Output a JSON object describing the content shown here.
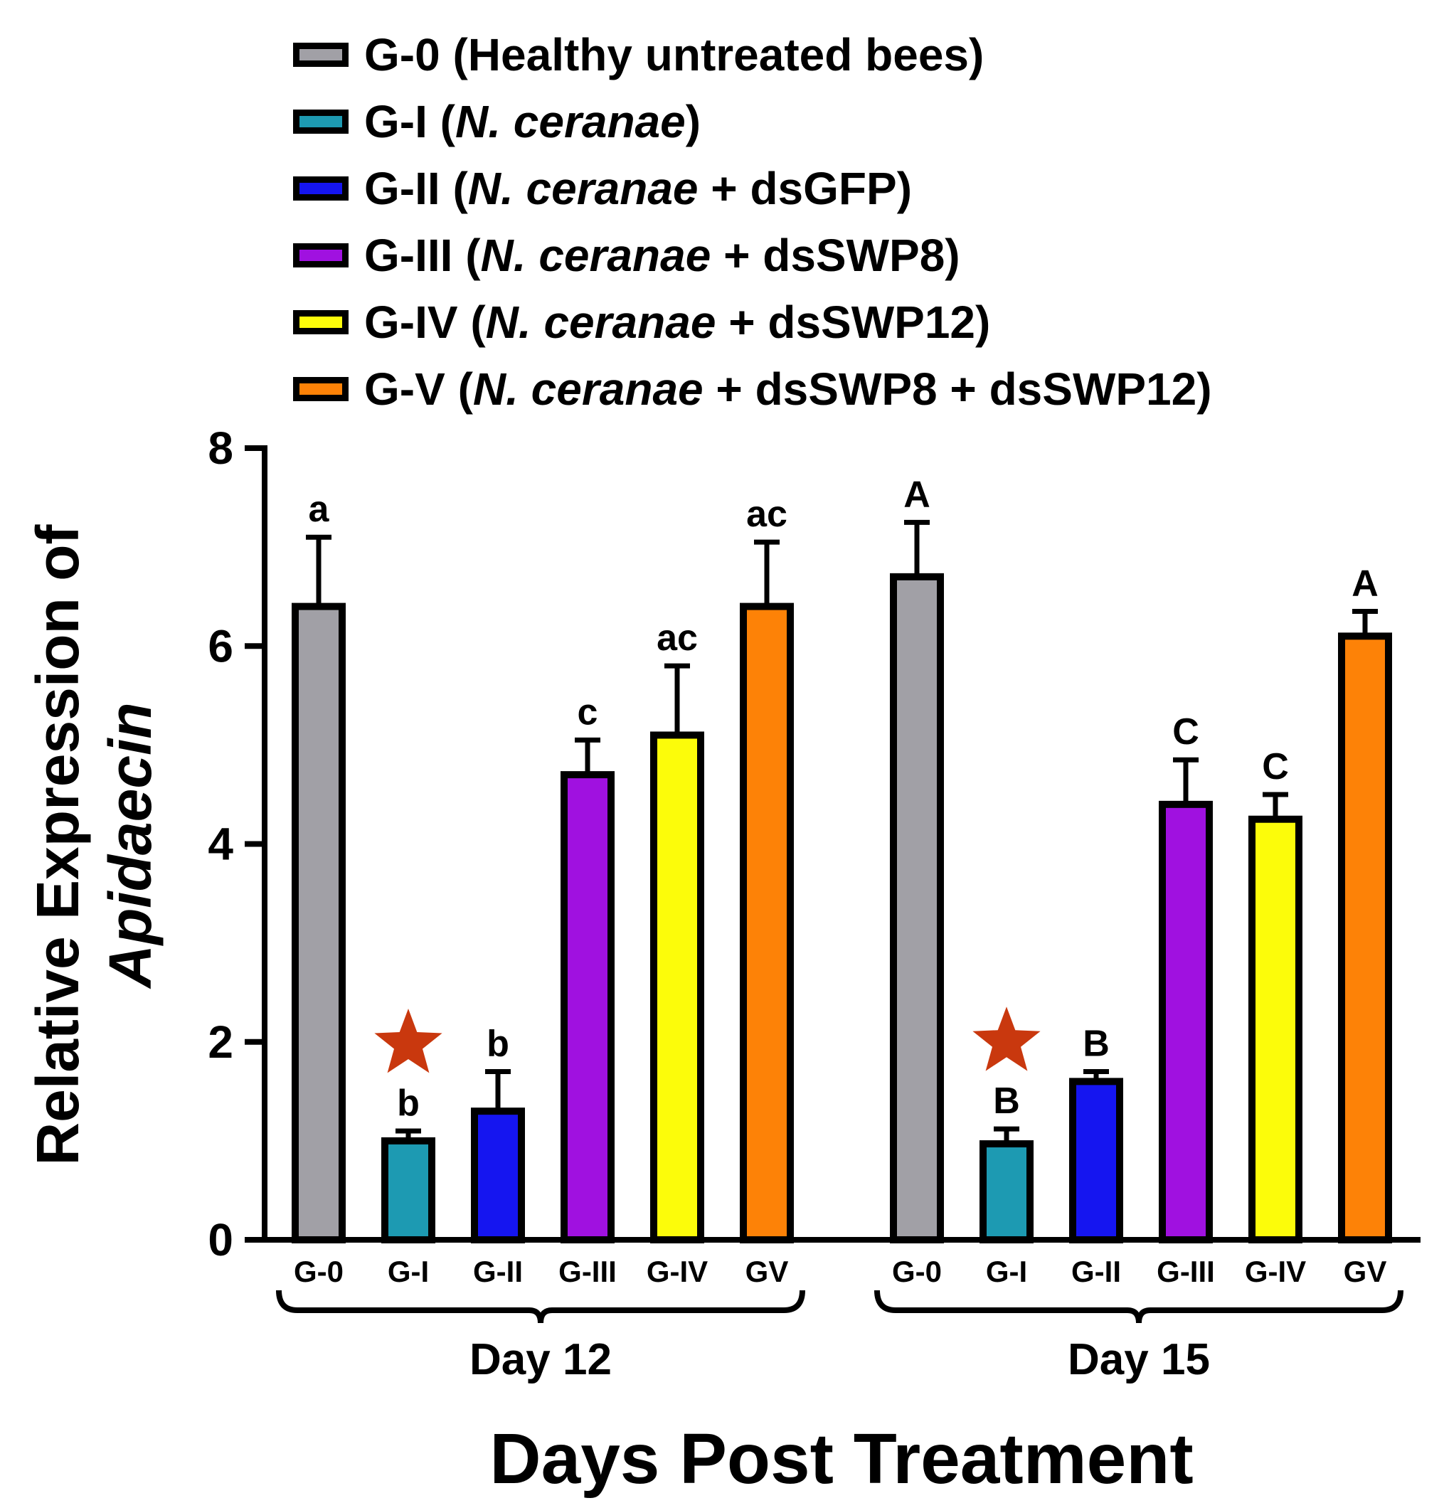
{
  "chart_data": {
    "type": "bar",
    "title": "",
    "ylabel_line1": "Relative Expression of",
    "ylabel_line2": "Apidaecin",
    "xlabel": "Days Post Treatment",
    "ylim": [
      0,
      8
    ],
    "yticks": [
      "0",
      "2",
      "4",
      "6",
      "8"
    ],
    "groups": [
      {
        "label": "Day 12",
        "bars": [
          {
            "category": "G-0",
            "value": 6.4,
            "error": 0.7,
            "letter": "a",
            "color": "#a1a0a6",
            "star": false
          },
          {
            "category": "G-I",
            "value": 1.0,
            "error": 0.1,
            "letter": "b",
            "color": "#1d9ab2",
            "star": true
          },
          {
            "category": "G-II",
            "value": 1.3,
            "error": 0.4,
            "letter": "b",
            "color": "#1515f0",
            "star": false
          },
          {
            "category": "G-III",
            "value": 4.7,
            "error": 0.35,
            "letter": "c",
            "color": "#a011e0",
            "star": false
          },
          {
            "category": "G-IV",
            "value": 5.1,
            "error": 0.7,
            "letter": "ac",
            "color": "#fcfc0a",
            "star": false
          },
          {
            "category": "GV",
            "value": 6.4,
            "error": 0.65,
            "letter": "ac",
            "color": "#fd8207",
            "star": false
          }
        ]
      },
      {
        "label": "Day 15",
        "bars": [
          {
            "category": "G-0",
            "value": 6.7,
            "error": 0.55,
            "letter": "A",
            "color": "#a1a0a6",
            "star": false
          },
          {
            "category": "G-I",
            "value": 0.97,
            "error": 0.15,
            "letter": "B",
            "color": "#1d9ab2",
            "star": true
          },
          {
            "category": "G-II",
            "value": 1.6,
            "error": 0.1,
            "letter": "B",
            "color": "#1515f0",
            "star": false
          },
          {
            "category": "G-III",
            "value": 4.4,
            "error": 0.45,
            "letter": "C",
            "color": "#a011e0",
            "star": false
          },
          {
            "category": "G-IV",
            "value": 4.25,
            "error": 0.25,
            "letter": "C",
            "color": "#fcfc0a",
            "star": false
          },
          {
            "category": "GV",
            "value": 6.1,
            "error": 0.25,
            "letter": "A",
            "color": "#fd8207",
            "star": false
          }
        ]
      }
    ],
    "star_color": "#c9380e",
    "legend": [
      {
        "code": "G-0",
        "pre": " (Healthy untreated bees)",
        "italic": "",
        "post": "",
        "color": "#a1a0a6"
      },
      {
        "code": "G-I",
        "pre": " (",
        "italic": "N. ceranae",
        "post": ")",
        "color": "#1d9ab2"
      },
      {
        "code": "G-II",
        "pre": " (",
        "italic": "N. ceranae",
        "post": " + dsGFP)",
        "color": "#1515f0"
      },
      {
        "code": "G-III",
        "pre": " (",
        "italic": "N. ceranae",
        "post": " + dsSWP8)",
        "color": "#a011e0"
      },
      {
        "code": "G-IV",
        "pre": " (",
        "italic": "N. ceranae",
        "post": " + dsSWP12)",
        "color": "#fcfc0a"
      },
      {
        "code": "G-V",
        "pre": " (",
        "italic": "N. ceranae",
        "post": " + dsSWP8 + dsSWP12)",
        "color": "#fd8207"
      }
    ]
  }
}
